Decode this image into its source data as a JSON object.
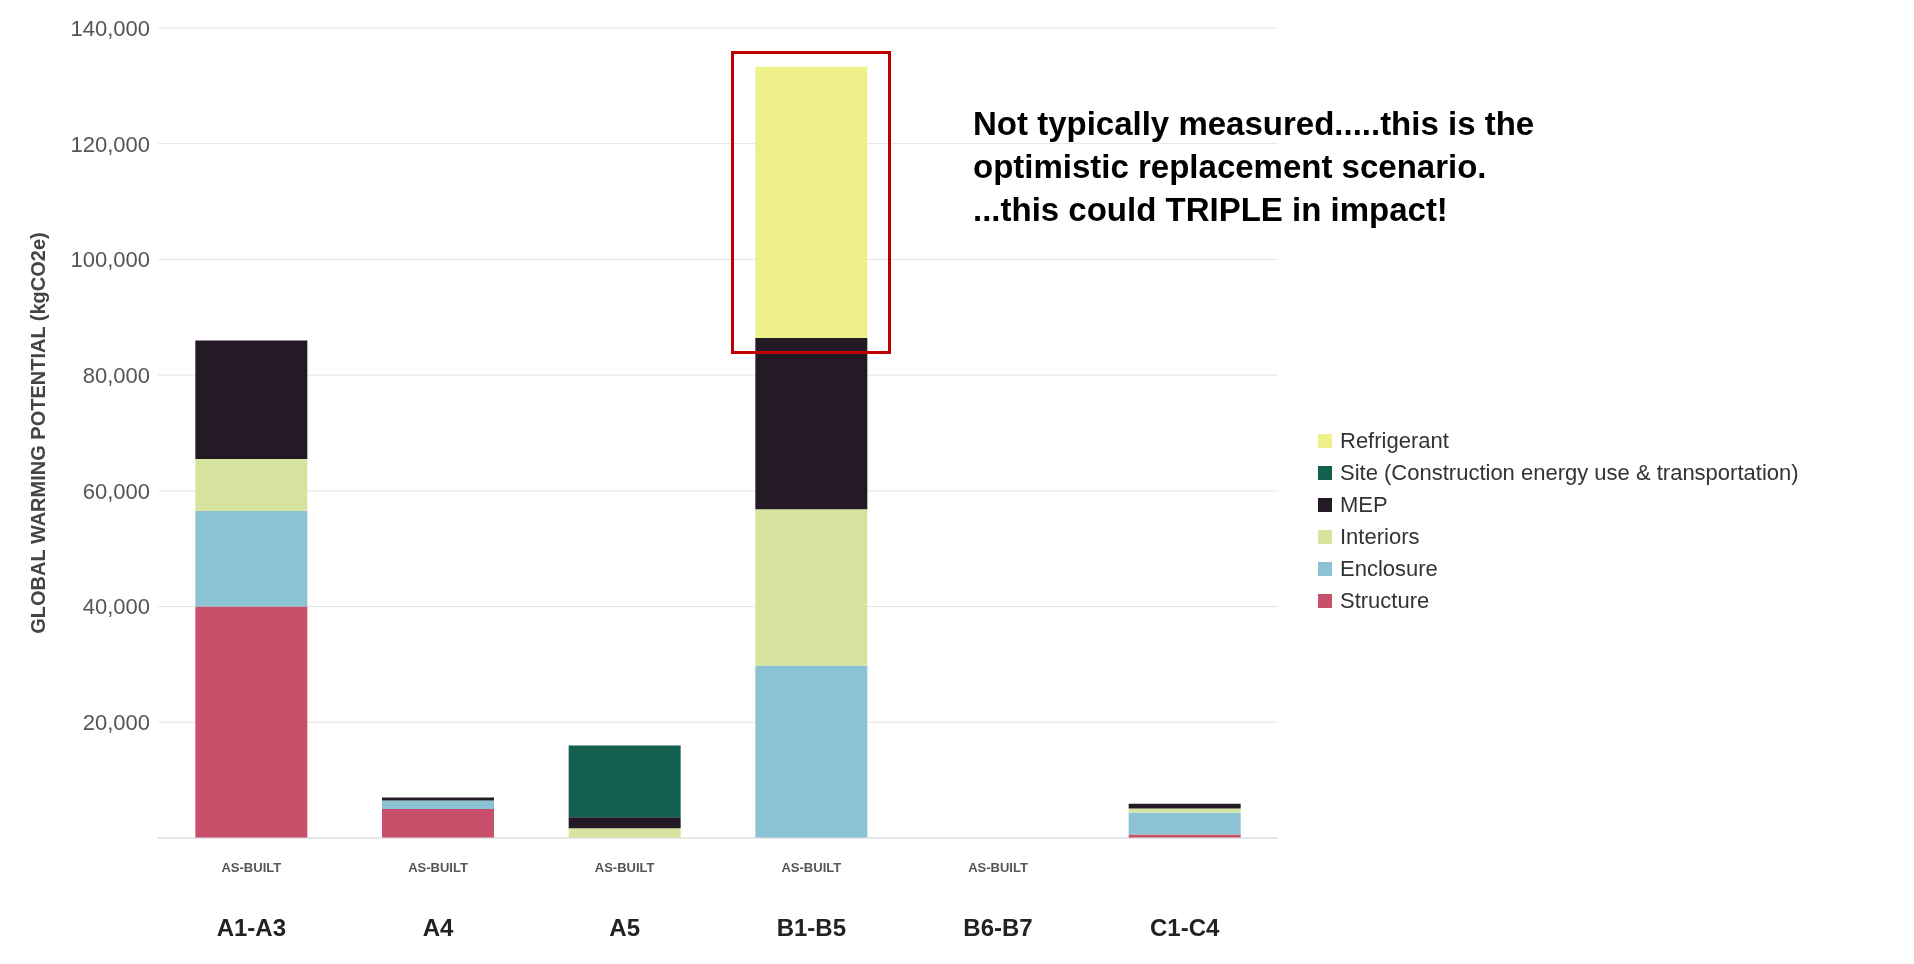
{
  "chart_data": {
    "type": "bar",
    "stacked": true,
    "categories": [
      "A1-A3",
      "A4",
      "A5",
      "B1-B5",
      "B6-B7",
      "C1-C4"
    ],
    "series": [
      {
        "name": "Structure",
        "color": "#c9506a",
        "values": [
          40000,
          5000,
          null,
          null,
          null,
          600
        ]
      },
      {
        "name": "Enclosure",
        "color": "#8cc3d4",
        "values": [
          16500,
          1500,
          null,
          29800,
          null,
          3800
        ]
      },
      {
        "name": "Interiors",
        "color": "#d7e4a0",
        "values": [
          9000,
          null,
          1700,
          27000,
          null,
          700
        ]
      },
      {
        "name": "MEP",
        "color": "#231a26",
        "values": [
          20500,
          500,
          1900,
          29600,
          null,
          800
        ]
      },
      {
        "name": "Site (Construction energy use & transportation)",
        "color": "#14604f",
        "values": [
          null,
          null,
          12400,
          null,
          null,
          null
        ]
      },
      {
        "name": "Refrigerant",
        "color": "#eef08a",
        "values": [
          null,
          null,
          null,
          46900,
          null,
          null
        ]
      }
    ],
    "ylabel": "GLOBAL WARMING POTENTIAL (kgCO2e)",
    "ylim": [
      0,
      140000
    ],
    "yticks": [
      {
        "value": 20000,
        "label": "20,000"
      },
      {
        "value": 40000,
        "label": "40,000"
      },
      {
        "value": 60000,
        "label": "60,000"
      },
      {
        "value": 80000,
        "label": "80,000"
      },
      {
        "value": 100000,
        "label": "100,000"
      },
      {
        "value": 120000,
        "label": "120,000"
      },
      {
        "value": 140000,
        "label": "140,000"
      }
    ],
    "grid": "y",
    "legend": "right",
    "annotations": [
      "Not typically measured.....this is the\noptimistic replacement scenario.\n...this could TRIPLE in impact!",
      "AS-BUILT",
      "AS-BUILT",
      "AS-BUILT",
      "AS-BUILT",
      "AS-BUILT"
    ]
  }
}
